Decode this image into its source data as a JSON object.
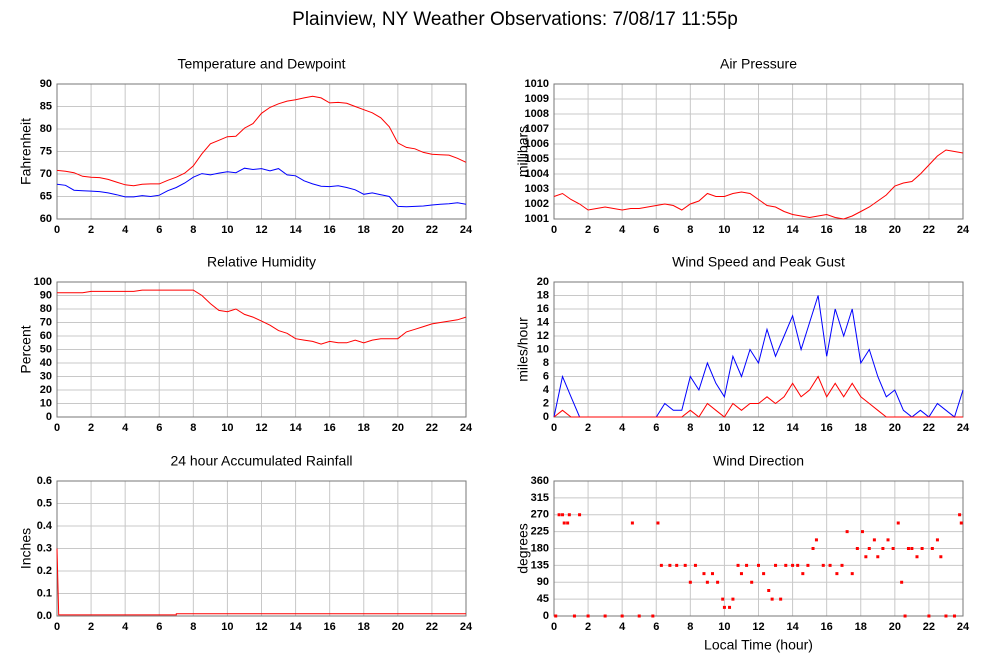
{
  "title": "Plainview, NY Weather Observations: 7/08/17 11:55p",
  "chart_data": [
    {
      "type": "line",
      "title": "Temperature and Dewpoint",
      "y_label": "Fahrenheit",
      "x": [
        0,
        0.5,
        1,
        1.5,
        2,
        2.5,
        3,
        3.5,
        4,
        4.5,
        5,
        5.5,
        6,
        6.5,
        7,
        7.5,
        8,
        8.5,
        9,
        9.5,
        10,
        10.5,
        11,
        11.5,
        12,
        12.5,
        13,
        13.5,
        14,
        14.5,
        15,
        15.5,
        16,
        16.5,
        17,
        17.5,
        18,
        18.5,
        19,
        19.5,
        20,
        20.5,
        21,
        21.5,
        22,
        22.5,
        23,
        23.5,
        24
      ],
      "series": [
        {
          "color": "#ff0000",
          "values": [
            70.8,
            70.6,
            70.3,
            69.5,
            69.3,
            69.2,
            68.8,
            68.2,
            67.6,
            67.4,
            67.7,
            67.8,
            67.8,
            68.6,
            69.3,
            70.2,
            71.8,
            74.5,
            76.7,
            77.5,
            78.3,
            78.4,
            80.2,
            81.2,
            83.5,
            84.8,
            85.6,
            86.2,
            86.5,
            86.9,
            87.3,
            86.9,
            85.8,
            85.9,
            85.7,
            85.0,
            84.3,
            83.6,
            82.5,
            80.5,
            76.9,
            75.9,
            75.6,
            74.8,
            74.4,
            74.3,
            74.2,
            73.5,
            72.6
          ]
        },
        {
          "color": "#0000ff",
          "values": [
            67.7,
            67.5,
            66.4,
            66.3,
            66.2,
            66.1,
            65.8,
            65.4,
            64.9,
            64.9,
            65.2,
            65.0,
            65.3,
            66.3,
            67.0,
            68.0,
            69.3,
            70.1,
            69.8,
            70.2,
            70.5,
            70.3,
            71.3,
            71.0,
            71.2,
            70.7,
            71.2,
            69.8,
            69.6,
            68.5,
            67.8,
            67.3,
            67.2,
            67.4,
            67.0,
            66.5,
            65.5,
            65.8,
            65.4,
            65.0,
            62.8,
            62.7,
            62.8,
            62.9,
            63.1,
            63.3,
            63.4,
            63.6,
            63.3
          ]
        }
      ],
      "xlim": [
        0,
        24
      ],
      "xticks": [
        0,
        2,
        4,
        6,
        8,
        10,
        12,
        14,
        16,
        18,
        20,
        22,
        24
      ],
      "ylim": [
        60,
        90
      ],
      "yticks": [
        60,
        65,
        70,
        75,
        80,
        85,
        90
      ],
      "grid": true
    },
    {
      "type": "line",
      "title": "Air Pressure",
      "y_label": "millibars",
      "x": [
        0,
        0.5,
        1,
        1.5,
        2,
        2.5,
        3,
        3.5,
        4,
        4.5,
        5,
        5.5,
        6,
        6.5,
        7,
        7.5,
        8,
        8.5,
        9,
        9.5,
        10,
        10.5,
        11,
        11.5,
        12,
        12.5,
        13,
        13.5,
        14,
        14.5,
        15,
        15.5,
        16,
        16.5,
        17,
        17.5,
        18,
        18.5,
        19,
        19.5,
        20,
        20.5,
        21,
        21.5,
        22,
        22.5,
        23,
        23.5,
        24
      ],
      "series": [
        {
          "color": "#ff0000",
          "values": [
            1002.5,
            1002.7,
            1002.3,
            1002.0,
            1001.6,
            1001.7,
            1001.8,
            1001.7,
            1001.6,
            1001.7,
            1001.7,
            1001.8,
            1001.9,
            1002.0,
            1001.9,
            1001.6,
            1002.0,
            1002.2,
            1002.7,
            1002.5,
            1002.5,
            1002.7,
            1002.8,
            1002.7,
            1002.3,
            1001.9,
            1001.8,
            1001.5,
            1001.3,
            1001.2,
            1001.1,
            1001.2,
            1001.3,
            1001.1,
            1001.0,
            1001.2,
            1001.5,
            1001.8,
            1002.2,
            1002.6,
            1003.2,
            1003.4,
            1003.5,
            1004.0,
            1004.6,
            1005.2,
            1005.6,
            1005.5,
            1005.4
          ]
        }
      ],
      "xlim": [
        0,
        24
      ],
      "xticks": [
        0,
        2,
        4,
        6,
        8,
        10,
        12,
        14,
        16,
        18,
        20,
        22,
        24
      ],
      "ylim": [
        1001,
        1010
      ],
      "yticks": [
        1001,
        1002,
        1003,
        1004,
        1005,
        1006,
        1007,
        1008,
        1009,
        1010
      ],
      "grid": true
    },
    {
      "type": "line",
      "title": "Relative Humidity",
      "y_label": "Percent",
      "x": [
        0,
        0.5,
        1,
        1.5,
        2,
        2.5,
        3,
        3.5,
        4,
        4.5,
        5,
        5.5,
        6,
        6.5,
        7,
        7.5,
        8,
        8.5,
        9,
        9.5,
        10,
        10.5,
        11,
        11.5,
        12,
        12.5,
        13,
        13.5,
        14,
        14.5,
        15,
        15.5,
        16,
        16.5,
        17,
        17.5,
        18,
        18.5,
        19,
        19.5,
        20,
        20.5,
        21,
        21.5,
        22,
        22.5,
        23,
        23.5,
        24
      ],
      "series": [
        {
          "color": "#ff0000",
          "values": [
            92,
            92,
            92,
            92,
            93,
            93,
            93,
            93,
            93,
            93,
            94,
            94,
            94,
            94,
            94,
            94,
            94,
            90,
            84,
            79,
            78,
            80,
            76,
            74,
            71,
            68,
            64,
            62,
            58,
            57,
            56,
            54,
            56,
            55,
            55,
            57,
            55,
            57,
            58,
            58,
            58,
            63,
            65,
            67,
            69,
            70,
            71,
            72,
            74
          ]
        }
      ],
      "xlim": [
        0,
        24
      ],
      "xticks": [
        0,
        2,
        4,
        6,
        8,
        10,
        12,
        14,
        16,
        18,
        20,
        22,
        24
      ],
      "ylim": [
        0,
        100
      ],
      "yticks": [
        0,
        10,
        20,
        30,
        40,
        50,
        60,
        70,
        80,
        90,
        100
      ],
      "grid": true
    },
    {
      "type": "line",
      "title": "Wind Speed and Peak Gust",
      "y_label": "miles/hour",
      "x": [
        0,
        0.5,
        1,
        1.5,
        2,
        2.5,
        3,
        3.5,
        4,
        4.5,
        5,
        5.5,
        6,
        6.5,
        7,
        7.5,
        8,
        8.5,
        9,
        9.5,
        10,
        10.5,
        11,
        11.5,
        12,
        12.5,
        13,
        13.5,
        14,
        14.5,
        15,
        15.5,
        16,
        16.5,
        17,
        17.5,
        18,
        18.5,
        19,
        19.5,
        20,
        20.5,
        21,
        21.5,
        22,
        22.5,
        23,
        23.5,
        24
      ],
      "series": [
        {
          "color": "#0000ff",
          "values": [
            0,
            6,
            3,
            0,
            0,
            0,
            0,
            0,
            0,
            0,
            0,
            0,
            0,
            2,
            1,
            1,
            6,
            4,
            8,
            5,
            3,
            9,
            6,
            10,
            8,
            13,
            9,
            12,
            15,
            10,
            14,
            18,
            9,
            16,
            12,
            16,
            8,
            10,
            6,
            3,
            4,
            1,
            0,
            1,
            0,
            2,
            1,
            0,
            4
          ]
        },
        {
          "color": "#ff0000",
          "values": [
            0,
            1,
            0,
            0,
            0,
            0,
            0,
            0,
            0,
            0,
            0,
            0,
            0,
            0,
            0,
            0,
            1,
            0,
            2,
            1,
            0,
            2,
            1,
            2,
            2,
            3,
            2,
            3,
            5,
            3,
            4,
            6,
            3,
            5,
            3,
            5,
            3,
            2,
            1,
            0,
            0,
            0,
            0,
            0,
            0,
            0,
            0,
            0,
            0
          ]
        }
      ],
      "xlim": [
        0,
        24
      ],
      "xticks": [
        0,
        2,
        4,
        6,
        8,
        10,
        12,
        14,
        16,
        18,
        20,
        22,
        24
      ],
      "ylim": [
        0,
        20
      ],
      "yticks": [
        0,
        2,
        4,
        6,
        8,
        10,
        12,
        14,
        16,
        18,
        20
      ],
      "grid": true
    },
    {
      "type": "line",
      "title": "24 hour Accumulated Rainfall",
      "y_label": "Inches",
      "x": [
        0,
        0.1,
        7,
        7,
        24
      ],
      "series": [
        {
          "color": "#ff0000",
          "values": [
            0.3,
            0.005,
            0.005,
            0.01,
            0.01
          ]
        }
      ],
      "xlim": [
        0,
        24
      ],
      "xticks": [
        0,
        2,
        4,
        6,
        8,
        10,
        12,
        14,
        16,
        18,
        20,
        22,
        24
      ],
      "ylim": [
        0,
        0.6
      ],
      "yticks": [
        {
          "value": 0,
          "label": "0.0"
        },
        0.1,
        0.2,
        0.3,
        0.4,
        0.5,
        0.6
      ],
      "grid": true
    },
    {
      "type": "scatter",
      "title": "Wind Direction",
      "y_label": "degrees",
      "x_label": "Local Time (hour)",
      "x": [
        0.1,
        0.3,
        0.5,
        0.6,
        0.8,
        0.9,
        1.2,
        1.5,
        2,
        3,
        4,
        4.6,
        5,
        5.8,
        6.1,
        6.3,
        6.8,
        7.2,
        7.7,
        8,
        8.3,
        8.8,
        9,
        9.3,
        9.6,
        9.9,
        10,
        10.3,
        10.5,
        10.8,
        11,
        11.3,
        11.6,
        12,
        12.3,
        12.6,
        12.8,
        13,
        13.3,
        13.6,
        14,
        14.3,
        14.6,
        14.9,
        15.2,
        15.4,
        15.8,
        16.2,
        16.6,
        16.9,
        17.2,
        17.5,
        17.8,
        18.1,
        18.3,
        18.5,
        18.8,
        19,
        19.3,
        19.6,
        19.9,
        20.2,
        20.4,
        20.6,
        20.8,
        21,
        21.3,
        21.6,
        22,
        22.2,
        22.5,
        22.7,
        23,
        23.5,
        23.8,
        23.9
      ],
      "series": [
        {
          "color": "#ff0000",
          "values": [
            0,
            270,
            270,
            248,
            248,
            270,
            0,
            270,
            0,
            0,
            0,
            248,
            0,
            0,
            248,
            135,
            135,
            135,
            135,
            90,
            135,
            113,
            90,
            113,
            90,
            45,
            23,
            23,
            45,
            135,
            113,
            135,
            90,
            135,
            113,
            68,
            45,
            135,
            45,
            135,
            135,
            135,
            113,
            135,
            180,
            203,
            135,
            135,
            113,
            135,
            225,
            113,
            180,
            225,
            158,
            180,
            203,
            158,
            180,
            203,
            180,
            248,
            90,
            0,
            180,
            180,
            158,
            180,
            0,
            180,
            203,
            158,
            0,
            0,
            270,
            248
          ]
        }
      ],
      "xlim": [
        0,
        24
      ],
      "xticks": [
        0,
        2,
        4,
        6,
        8,
        10,
        12,
        14,
        16,
        18,
        20,
        22,
        24
      ],
      "ylim": [
        0,
        360
      ],
      "yticks": [
        0,
        45,
        90,
        135,
        180,
        225,
        270,
        315,
        360
      ],
      "grid": true
    }
  ]
}
